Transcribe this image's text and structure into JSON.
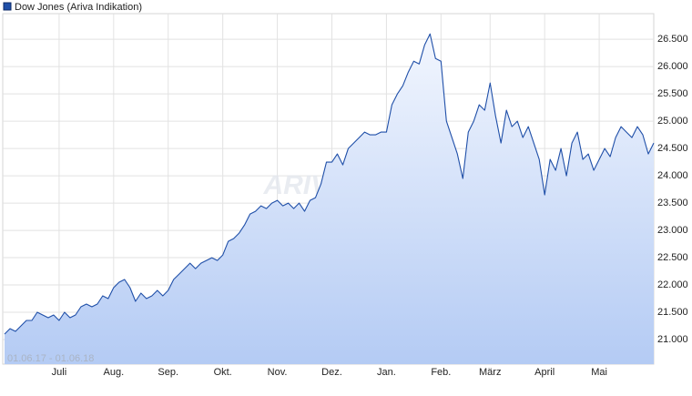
{
  "chart_data": {
    "type": "area",
    "series": [
      {
        "name": "Dow Jones (Ariva Indikation)",
        "color": "#1f4fa8",
        "values": [
          21100,
          21200,
          21150,
          21250,
          21350,
          21350,
          21500,
          21450,
          21400,
          21450,
          21350,
          21500,
          21400,
          21450,
          21600,
          21650,
          21600,
          21650,
          21800,
          21750,
          21950,
          22050,
          22100,
          21950,
          21700,
          21850,
          21750,
          21800,
          21900,
          21800,
          21900,
          22100,
          22200,
          22300,
          22400,
          22300,
          22400,
          22450,
          22500,
          22450,
          22550,
          22800,
          22850,
          22950,
          23100,
          23300,
          23350,
          23450,
          23400,
          23500,
          23550,
          23450,
          23500,
          23400,
          23500,
          23350,
          23550,
          23600,
          23850,
          24250,
          24250,
          24400,
          24200,
          24500,
          24600,
          24700,
          24800,
          24750,
          24750,
          24800,
          24800,
          25300,
          25500,
          25650,
          25900,
          26100,
          26050,
          26400,
          26600,
          26150,
          26100,
          25000,
          24700,
          24400,
          23950,
          24800,
          25000,
          25300,
          25200,
          25700,
          25100,
          24600,
          25200,
          24900,
          25000,
          24700,
          24900,
          24600,
          24300,
          23650,
          24300,
          24100,
          24500,
          24000,
          24600,
          24800,
          24300,
          24400,
          24100,
          24300,
          24500,
          24350,
          24700,
          24900,
          24800,
          24700,
          24900,
          24750,
          24400,
          24600
        ]
      }
    ],
    "categories": [
      null,
      null,
      null,
      null,
      null,
      null,
      null,
      null,
      null,
      null,
      "Juli",
      null,
      null,
      null,
      null,
      null,
      null,
      null,
      null,
      null,
      "Aug.",
      null,
      null,
      null,
      null,
      null,
      null,
      null,
      null,
      null,
      "Sep.",
      null,
      null,
      null,
      null,
      null,
      null,
      null,
      null,
      null,
      "Okt.",
      null,
      null,
      null,
      null,
      null,
      null,
      null,
      null,
      null,
      "Nov.",
      null,
      null,
      null,
      null,
      null,
      null,
      null,
      null,
      null,
      "Dez.",
      null,
      null,
      null,
      null,
      null,
      null,
      null,
      null,
      null,
      "Jan.",
      null,
      null,
      null,
      null,
      null,
      null,
      null,
      null,
      null,
      "Feb.",
      null,
      null,
      null,
      null,
      null,
      null,
      null,
      null,
      "März",
      null,
      null,
      null,
      null,
      null,
      null,
      null,
      null,
      null,
      "April",
      null,
      null,
      null,
      null,
      null,
      null,
      null,
      null,
      null,
      "Mai",
      null,
      null,
      null,
      null,
      null,
      null,
      null,
      null,
      null,
      null
    ],
    "ylim": [
      20550,
      26970
    ],
    "yticks": [
      {
        "value": 21000,
        "label": "21.000"
      },
      {
        "value": 21500,
        "label": "21.500"
      },
      {
        "value": 22000,
        "label": "22.000"
      },
      {
        "value": 22500,
        "label": "22.500"
      },
      {
        "value": 23000,
        "label": "23.000"
      },
      {
        "value": 23500,
        "label": "23.500"
      },
      {
        "value": 24000,
        "label": "24.000"
      },
      {
        "value": 24500,
        "label": "24.500"
      },
      {
        "value": 25000,
        "label": "25.000"
      },
      {
        "value": 25500,
        "label": "25.500"
      },
      {
        "value": 26000,
        "label": "26.000"
      },
      {
        "value": 26500,
        "label": "26.500"
      }
    ],
    "grid": true,
    "date_range": "01.06.17 - 01.06.18",
    "watermark": "ARIVA.DE"
  }
}
